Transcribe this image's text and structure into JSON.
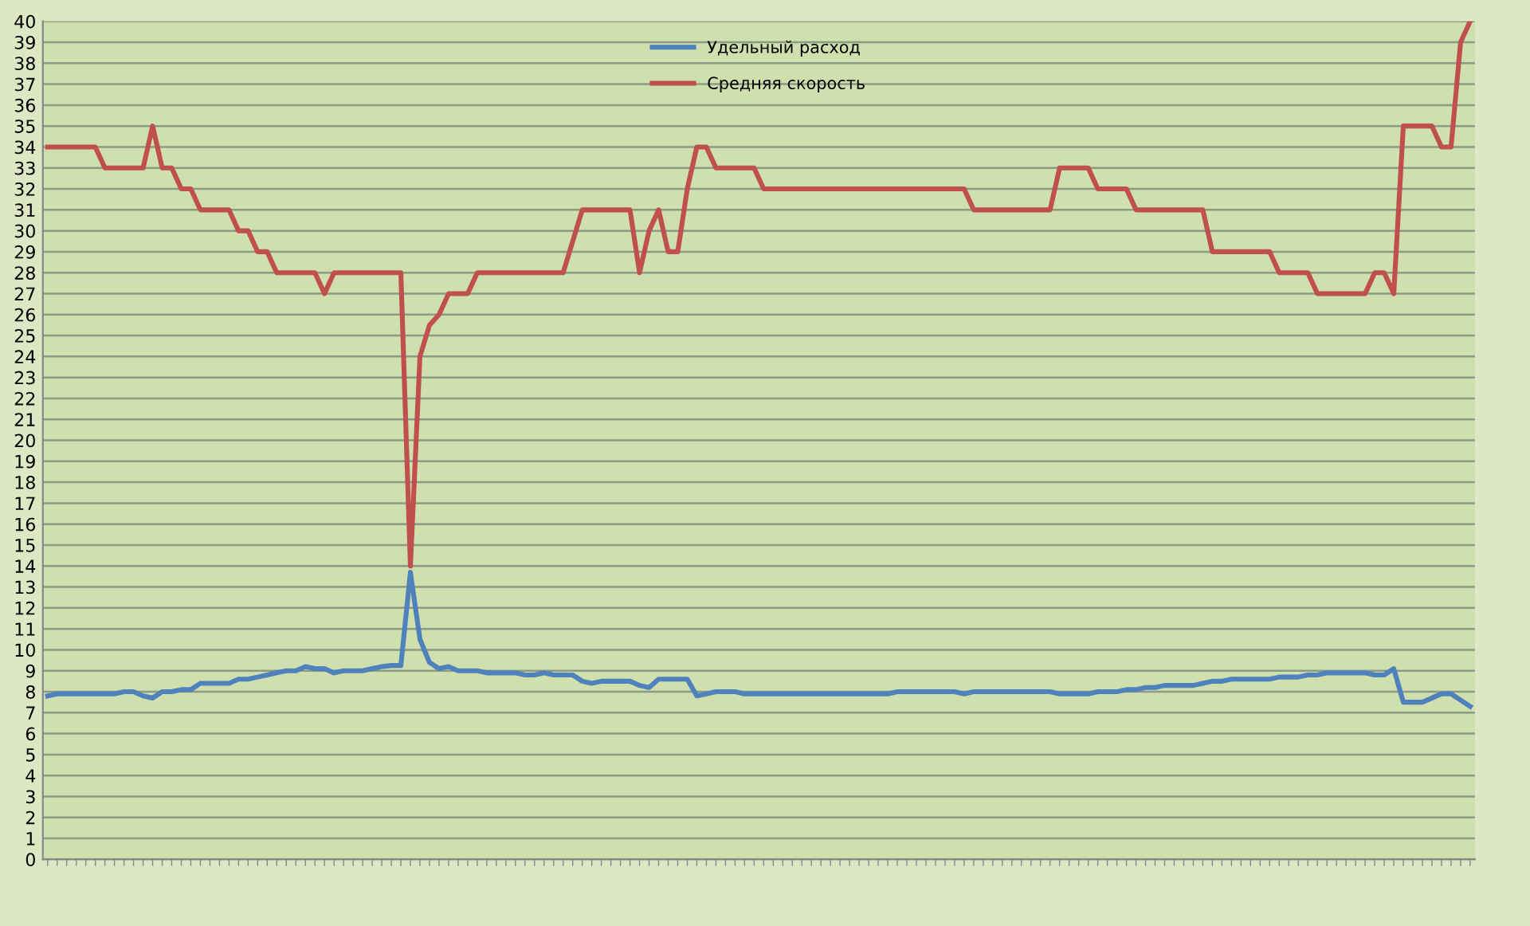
{
  "chart_data": {
    "type": "line",
    "categories": [
      null,
      null,
      null,
      null,
      null,
      null,
      null,
      null,
      null,
      null,
      null,
      null,
      null,
      null,
      null,
      null,
      null,
      null,
      null,
      null,
      null,
      null,
      null,
      null,
      null,
      null,
      null,
      null,
      null,
      null,
      null,
      null,
      null,
      null,
      null,
      null,
      null,
      null,
      null,
      null,
      null,
      null,
      null,
      null,
      null,
      null,
      null,
      null,
      null,
      null,
      null,
      null,
      null,
      null,
      null,
      null,
      null,
      null,
      null,
      null,
      null,
      null,
      null,
      null,
      null,
      null,
      null,
      null,
      null,
      null,
      null,
      null,
      null,
      null,
      null,
      null,
      null,
      null,
      null,
      null,
      null,
      null,
      null,
      null,
      null,
      null,
      null,
      null,
      null,
      null,
      null,
      null,
      null,
      null,
      null,
      null,
      null,
      null,
      null,
      null,
      null,
      null,
      null,
      null,
      null,
      null,
      null,
      null,
      null,
      null,
      null,
      null,
      null,
      null,
      null,
      null,
      null,
      null,
      null,
      null,
      null,
      null,
      null,
      null,
      null,
      null,
      null,
      null,
      null,
      null,
      null,
      null,
      null,
      null,
      null,
      null,
      null,
      null,
      null,
      null,
      null,
      null,
      null,
      null,
      null,
      null,
      null,
      null,
      null,
      null
    ],
    "series": [
      {
        "name": "Удельный расход",
        "color": "#4f81bd",
        "values": [
          7.8,
          7.9,
          7.9,
          7.9,
          7.9,
          7.9,
          7.9,
          7.9,
          8.0,
          8.0,
          7.8,
          7.7,
          8.0,
          8.0,
          8.1,
          8.1,
          8.4,
          8.4,
          8.4,
          8.4,
          8.6,
          8.6,
          8.7,
          8.8,
          8.9,
          9.0,
          9.0,
          9.2,
          9.1,
          9.1,
          8.9,
          9.0,
          9.0,
          9.0,
          9.1,
          9.2,
          9.25,
          9.25,
          13.7,
          10.5,
          9.4,
          9.1,
          9.2,
          9.0,
          9.0,
          9.0,
          8.9,
          8.9,
          8.9,
          8.9,
          8.8,
          8.8,
          8.9,
          8.8,
          8.8,
          8.8,
          8.5,
          8.4,
          8.5,
          8.5,
          8.5,
          8.5,
          8.3,
          8.2,
          8.6,
          8.6,
          8.6,
          8.6,
          7.8,
          7.9,
          8.0,
          8.0,
          8.0,
          7.9,
          7.9,
          7.9,
          7.9,
          7.9,
          7.9,
          7.9,
          7.9,
          7.9,
          7.9,
          7.9,
          7.9,
          7.9,
          7.9,
          7.9,
          7.9,
          8.0,
          8.0,
          8.0,
          8.0,
          8.0,
          8.0,
          8.0,
          7.9,
          8.0,
          8.0,
          8.0,
          8.0,
          8.0,
          8.0,
          8.0,
          8.0,
          8.0,
          7.9,
          7.9,
          7.9,
          7.9,
          8.0,
          8.0,
          8.0,
          8.1,
          8.1,
          8.2,
          8.2,
          8.3,
          8.3,
          8.3,
          8.3,
          8.4,
          8.5,
          8.5,
          8.6,
          8.6,
          8.6,
          8.6,
          8.6,
          8.7,
          8.7,
          8.7,
          8.8,
          8.8,
          8.9,
          8.9,
          8.9,
          8.9,
          8.9,
          8.8,
          8.8,
          9.1,
          7.5,
          7.5,
          7.5,
          7.7,
          7.9,
          7.9,
          7.6,
          7.3
        ]
      },
      {
        "name": "Средняя скорость",
        "color": "#c0504d",
        "values": [
          34,
          34,
          34,
          34,
          34,
          34,
          33,
          33,
          33,
          33,
          33,
          35,
          33,
          33,
          32,
          32,
          31,
          31,
          31,
          31,
          30,
          30,
          29,
          29,
          28,
          28,
          28,
          28,
          28,
          27,
          28,
          28,
          28,
          28,
          28,
          28,
          28,
          28,
          14,
          24,
          25.5,
          26,
          27,
          27,
          27,
          28,
          28,
          28,
          28,
          28,
          28,
          28,
          28,
          28,
          28,
          29.5,
          31,
          31,
          31,
          31,
          31,
          31,
          28,
          30,
          31,
          29,
          29,
          32,
          34,
          34,
          33,
          33,
          33,
          33,
          33,
          32,
          32,
          32,
          32,
          32,
          32,
          32,
          32,
          32,
          32,
          32,
          32,
          32,
          32,
          32,
          32,
          32,
          32,
          32,
          32,
          32,
          32,
          31,
          31,
          31,
          31,
          31,
          31,
          31,
          31,
          31,
          33,
          33,
          33,
          33,
          32,
          32,
          32,
          32,
          31,
          31,
          31,
          31,
          31,
          31,
          31,
          31,
          29,
          29,
          29,
          29,
          29,
          29,
          29,
          28,
          28,
          28,
          28,
          27,
          27,
          27,
          27,
          27,
          27,
          28,
          28,
          27,
          35,
          35,
          35,
          35,
          34,
          34,
          39,
          40
        ]
      }
    ],
    "ylim": [
      0,
      40
    ],
    "yticks": [
      0,
      1,
      2,
      3,
      4,
      5,
      6,
      7,
      8,
      9,
      10,
      11,
      12,
      13,
      14,
      15,
      16,
      17,
      18,
      19,
      20,
      21,
      22,
      23,
      24,
      25,
      26,
      27,
      28,
      29,
      30,
      31,
      32,
      33,
      34,
      35,
      36,
      37,
      38,
      39,
      40
    ],
    "grid": "y",
    "legend": "top",
    "marker": "none",
    "line_style": "solid"
  }
}
